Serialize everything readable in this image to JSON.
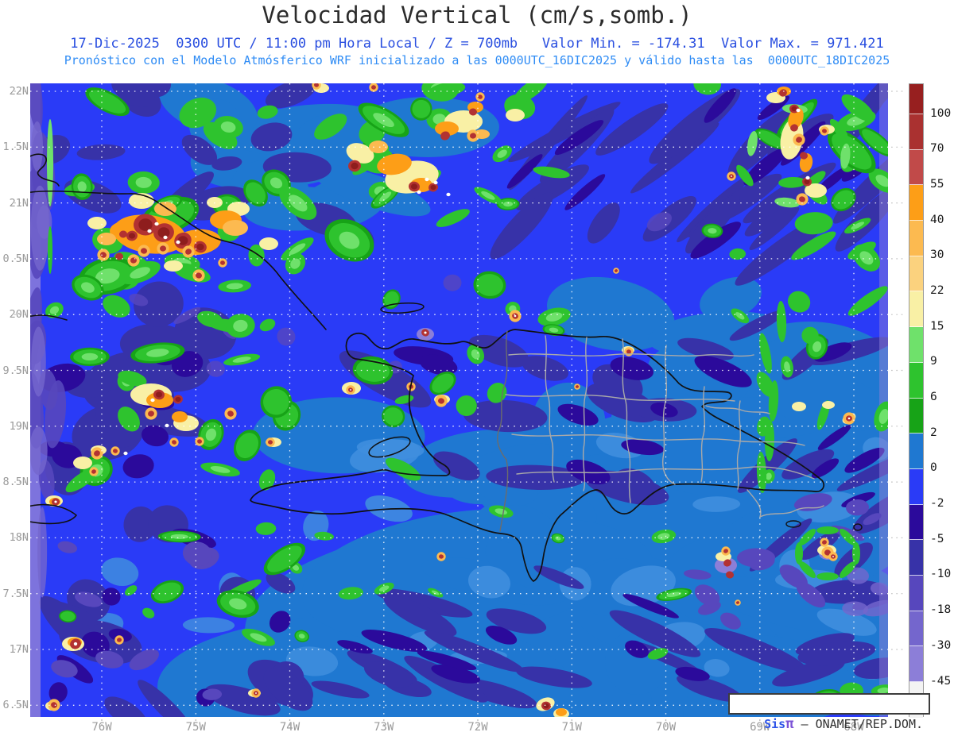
{
  "header": {
    "title": "Velocidad Vertical (cm/s,somb.)",
    "line1": "17-Dic-2025  0300 UTC / 11:00 pm Hora Local / Z = 700mb   Valor Min. = -174.31  Valor Max. = 971.421",
    "line2": "Pronóstico con el Modelo Atmósferico WRF inicializado a las 0000UTC_16DIC2025 y válido hasta las  0000UTC_18DIC2025"
  },
  "axes": {
    "lat_labels": [
      "22N",
      "1.5N",
      "21N",
      "0.5N",
      "20N",
      "9.5N",
      "19N",
      "8.5N",
      "18N",
      "7.5N",
      "17N",
      "6.5N"
    ],
    "lon_labels": [
      "76W",
      "75W",
      "74W",
      "73W",
      "72W",
      "71W",
      "70W",
      "69W",
      "68W"
    ]
  },
  "colorbar": {
    "tick_labels": [
      "100",
      "70",
      "55",
      "40",
      "30",
      "22",
      "15",
      "9",
      "6",
      "2",
      "0",
      "-2",
      "-5",
      "-10",
      "-18",
      "-30",
      "-45"
    ],
    "segment_colors_top_to_bottom": [
      "#971f1f",
      "#aa3130",
      "#c14a49",
      "#fd9e17",
      "#fcba50",
      "#fbd27e",
      "#f9f0a5",
      "#6fe16b",
      "#2ec32e",
      "#17a317",
      "#1f78d1",
      "#2a3bf7",
      "#2b0a9b",
      "#3732a8",
      "#5747bd",
      "#7466cd",
      "#8c7ed8",
      "#f3f3f3"
    ]
  },
  "watermark": {
    "prefix": "Sis",
    "pi": "π",
    "separator": " — ",
    "org": "ONAMET/REP.DOM."
  },
  "colors": {
    "title_text": "#2b2b2b",
    "subtitle1_text": "#2a4fe0",
    "subtitle2_text": "#2f8cf5",
    "axis_text": "#9a9a9a",
    "colorbar_tick_text": "#1a1a1a",
    "watermark_prefix": "#2f55e8",
    "watermark_pi": "#7b52d6",
    "watermark_org": "#333333"
  }
}
